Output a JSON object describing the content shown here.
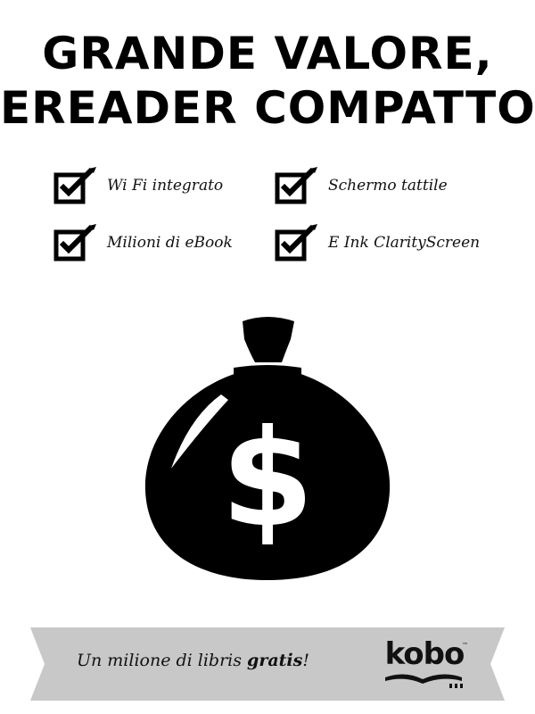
{
  "headline": {
    "line1": "GRANDE VALORE,",
    "line2": "EREADER COMPATTO"
  },
  "features": [
    {
      "label": "Wi Fi integrato",
      "icon": "checkbox-checked-icon"
    },
    {
      "label": "Schermo tattile",
      "icon": "checkbox-checked-icon"
    },
    {
      "label": "Milioni di eBook",
      "icon": "checkbox-checked-icon"
    },
    {
      "label": "E Ink ClarityScreen",
      "icon": "checkbox-checked-icon"
    }
  ],
  "illustration": {
    "icon": "money-bag-icon",
    "symbol": "$",
    "color": "#000000"
  },
  "banner": {
    "text_before": "Un milione di libris ",
    "text_bold": "gratis",
    "text_after": "!",
    "background": "#c8c8c8"
  },
  "logo": {
    "text": "kobo",
    "trademark": "™",
    "icon": "kobo-book-icon"
  }
}
